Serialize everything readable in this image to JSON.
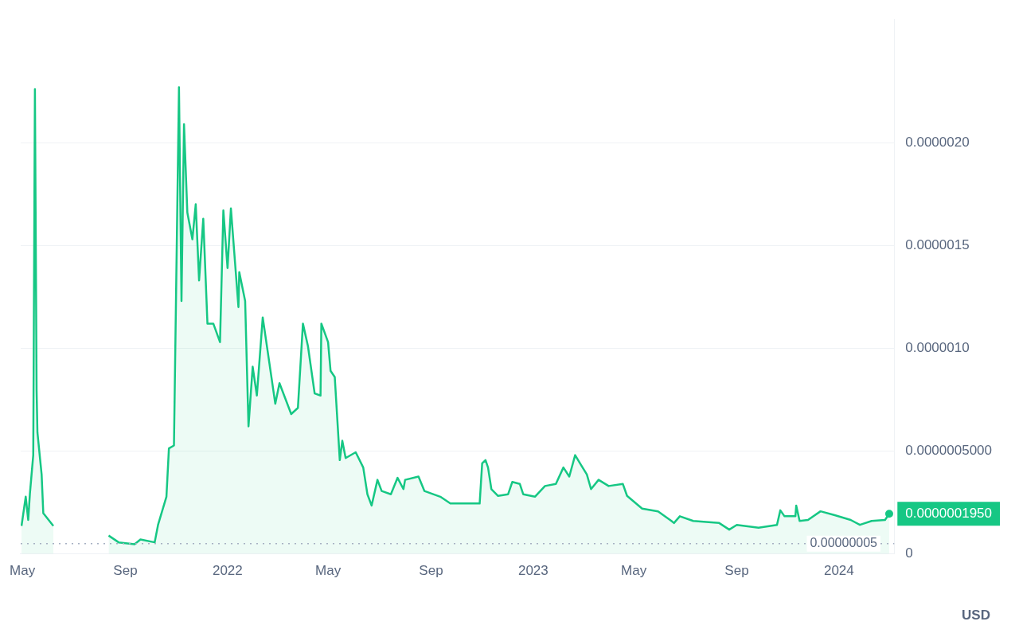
{
  "chart_data": {
    "type": "area",
    "grid": "y",
    "legend": false,
    "xlim": [
      "2021-04-29",
      "2024-03-07"
    ],
    "xticks": [
      {
        "value": "2021-05-01",
        "label": "May"
      },
      {
        "value": "2021-09-01",
        "label": "Sep"
      },
      {
        "value": "2022-01-01",
        "label": "2022"
      },
      {
        "value": "2022-05-01",
        "label": "May"
      },
      {
        "value": "2022-09-01",
        "label": "Sep"
      },
      {
        "value": "2023-01-01",
        "label": "2023"
      },
      {
        "value": "2023-05-01",
        "label": "May"
      },
      {
        "value": "2023-09-01",
        "label": "Sep"
      },
      {
        "value": "2024-01-01",
        "label": "2024"
      }
    ],
    "ylim": [
      0,
      2.6e-06
    ],
    "yticks": [
      {
        "value": 0,
        "label": "0"
      },
      {
        "value": 5e-07,
        "label": "0.0000005000"
      },
      {
        "value": 1e-06,
        "label": "0.0000010"
      },
      {
        "value": 1.5e-06,
        "label": "0.0000015"
      },
      {
        "value": 2e-06,
        "label": "0.0000020"
      }
    ],
    "ref_lines": [
      {
        "axis": "y",
        "value": 5e-08,
        "label": "0.00000005",
        "line_style": "dotted",
        "color": "#a6b0c3"
      }
    ],
    "annotations": [
      {
        "text": "0.0000001950",
        "x": "2024-03-01",
        "y": 1.95e-07
      },
      "USD"
    ],
    "series": [
      {
        "color": "#16c784",
        "x": [
          "2021-04-30",
          "2021-05-05",
          "2021-05-08",
          "2021-05-10",
          "2021-05-14",
          "2021-05-16",
          "2021-05-18",
          "2021-05-19",
          "2021-05-24",
          "2021-05-26",
          "2021-06-07",
          "2021-07-08",
          "2021-08-12",
          "2021-08-24",
          "2021-09-12",
          "2021-09-19",
          "2021-10-06",
          "2021-10-10",
          "2021-10-20",
          "2021-10-23",
          "2021-10-29",
          "2021-11-04",
          "2021-11-07",
          "2021-11-10",
          "2021-11-14",
          "2021-11-20",
          "2021-11-24",
          "2021-11-28",
          "2021-12-03",
          "2021-12-08",
          "2021-12-15",
          "2021-12-23",
          "2021-12-27",
          "2022-01-01",
          "2022-01-05",
          "2022-01-14",
          "2022-01-15",
          "2022-01-22",
          "2022-01-26",
          "2022-01-31",
          "2022-02-05",
          "2022-02-12",
          "2022-02-22",
          "2022-02-27",
          "2022-03-04",
          "2022-03-18",
          "2022-03-26",
          "2022-04-01",
          "2022-04-07",
          "2022-04-15",
          "2022-04-22",
          "2022-04-23",
          "2022-05-01",
          "2022-05-04",
          "2022-05-09",
          "2022-05-15",
          "2022-05-18",
          "2022-05-22",
          "2022-06-03",
          "2022-06-12",
          "2022-06-17",
          "2022-06-22",
          "2022-06-29",
          "2022-07-04",
          "2022-07-15",
          "2022-07-23",
          "2022-07-30",
          "2022-08-01",
          "2022-08-17",
          "2022-08-24",
          "2022-09-12",
          "2022-09-24",
          "2022-10-20",
          "2022-10-29",
          "2022-11-01",
          "2022-11-05",
          "2022-11-08",
          "2022-11-12",
          "2022-11-20",
          "2022-12-02",
          "2022-12-07",
          "2022-12-16",
          "2022-12-20",
          "2023-01-03",
          "2023-01-15",
          "2023-01-28",
          "2023-02-06",
          "2023-02-13",
          "2023-02-20",
          "2023-02-27",
          "2023-03-06",
          "2023-03-11",
          "2023-03-20",
          "2023-04-01",
          "2023-04-18",
          "2023-04-23",
          "2023-05-11",
          "2023-05-30",
          "2023-06-15",
          "2023-06-18",
          "2023-06-25",
          "2023-07-11",
          "2023-08-11",
          "2023-08-23",
          "2023-09-01",
          "2023-09-27",
          "2023-10-19",
          "2023-10-23",
          "2023-10-28",
          "2023-11-10",
          "2023-11-11",
          "2023-11-15",
          "2023-11-25",
          "2023-12-10",
          "2023-12-27",
          "2024-01-15",
          "2024-01-26",
          "2024-02-09",
          "2024-02-25",
          "2024-03-01"
        ],
        "values": [
          1.36e-07,
          2.78e-07,
          1.65e-07,
          2.92e-07,
          4.8e-07,
          2.26e-06,
          7.95e-07,
          5.9e-07,
          3.86e-07,
          1.98e-07,
          1.36e-07,
          null,
          8.9e-08,
          5.6e-08,
          4.7e-08,
          7e-08,
          5.6e-08,
          1.41e-07,
          2.78e-07,
          5.13e-07,
          5.27e-07,
          2.27e-06,
          1.23e-06,
          2.09e-06,
          1.66e-06,
          1.53e-06,
          1.7e-06,
          1.33e-06,
          1.63e-06,
          1.12e-06,
          1.12e-06,
          1.03e-06,
          1.67e-06,
          1.39e-06,
          1.68e-06,
          1.2e-06,
          1.37e-06,
          1.23e-06,
          6.2e-07,
          9.1e-07,
          7.7e-07,
          1.15e-06,
          8.7e-07,
          7.3e-07,
          8.3e-07,
          6.8e-07,
          7.1e-07,
          1.12e-06,
          1.01e-06,
          7.8e-07,
          7.7e-07,
          1.12e-06,
          1.03e-06,
          8.9e-07,
          8.6e-07,
          4.56e-07,
          5.5e-07,
          4.66e-07,
          4.94e-07,
          4.2e-07,
          2.9e-07,
          2.35e-07,
          3.6e-07,
          3.06e-07,
          2.9e-07,
          3.7e-07,
          3.15e-07,
          3.6e-07,
          3.76e-07,
          3.06e-07,
          2.78e-07,
          2.45e-07,
          2.45e-07,
          2.45e-07,
          4.4e-07,
          4.56e-07,
          4.2e-07,
          3.15e-07,
          2.82e-07,
          2.9e-07,
          3.5e-07,
          3.4e-07,
          2.9e-07,
          2.78e-07,
          3.3e-07,
          3.4e-07,
          4.2e-07,
          3.76e-07,
          4.8e-07,
          4.33e-07,
          3.86e-07,
          3.15e-07,
          3.6e-07,
          3.3e-07,
          3.4e-07,
          2.82e-07,
          2.2e-07,
          2.07e-07,
          1.6e-07,
          1.5e-07,
          1.83e-07,
          1.6e-07,
          1.5e-07,
          1.18e-07,
          1.41e-07,
          1.27e-07,
          1.41e-07,
          2.12e-07,
          1.83e-07,
          1.83e-07,
          2.35e-07,
          1.6e-07,
          1.65e-07,
          2.07e-07,
          1.88e-07,
          1.65e-07,
          1.41e-07,
          1.6e-07,
          1.65e-07,
          1.95e-07
        ]
      }
    ]
  }
}
